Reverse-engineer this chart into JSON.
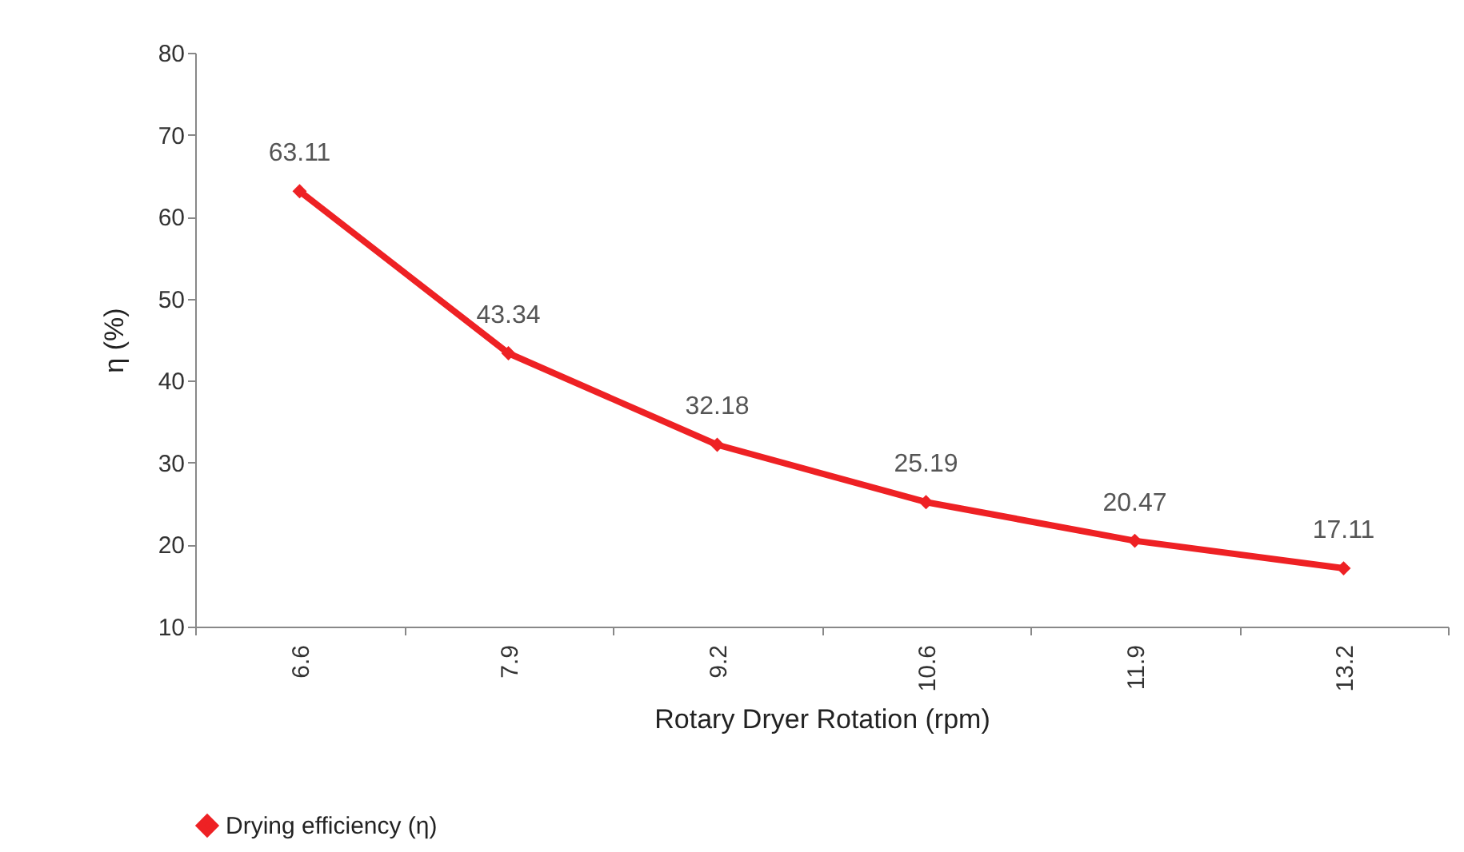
{
  "chart_data": {
    "type": "line",
    "xlabel": "Rotary Dryer Rotation (rpm)",
    "ylabel": "η (%)",
    "categories": [
      "6.6",
      "7.9",
      "9.2",
      "10.6",
      "11.9",
      "13.2"
    ],
    "series": [
      {
        "name": "Drying efficiency (η)",
        "color": "#ee2124",
        "values": [
          63.11,
          43.34,
          32.18,
          25.19,
          20.47,
          17.11
        ]
      }
    ],
    "ylim": [
      10,
      80
    ],
    "yticks": [
      10,
      20,
      30,
      40,
      50,
      60,
      70,
      80
    ],
    "data_labels": true,
    "legend": "bottom",
    "marker": "diamond"
  }
}
